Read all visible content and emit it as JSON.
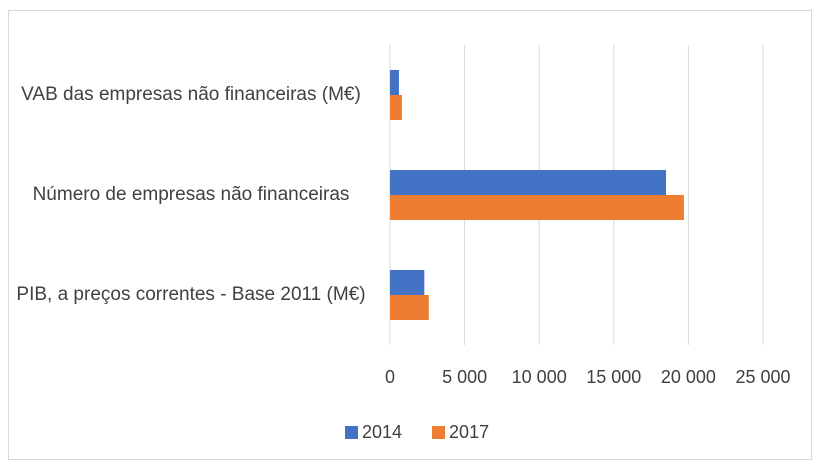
{
  "chart_data": {
    "type": "bar",
    "orientation": "horizontal",
    "categories": [
      "VAB das empresas não financeiras (M€)",
      "Número de empresas não financeiras",
      "PIB, a preços correntes - Base 2011 (M€)"
    ],
    "series": [
      {
        "name": "2014",
        "color": "#4472c4",
        "values": [
          600,
          18500,
          2300
        ]
      },
      {
        "name": "2017",
        "color": "#ed7d31",
        "values": [
          800,
          19700,
          2600
        ]
      }
    ],
    "xlim": [
      0,
      25000
    ],
    "xticks": [
      0,
      {
        "value": 5000,
        "label": "5 000"
      },
      {
        "value": 10000,
        "label": "10 000"
      },
      {
        "value": 15000,
        "label": "15 000"
      },
      {
        "value": 20000,
        "label": "20 000"
      },
      {
        "value": 25000,
        "label": "25 000"
      }
    ],
    "grid": true,
    "legend": "bottom"
  }
}
